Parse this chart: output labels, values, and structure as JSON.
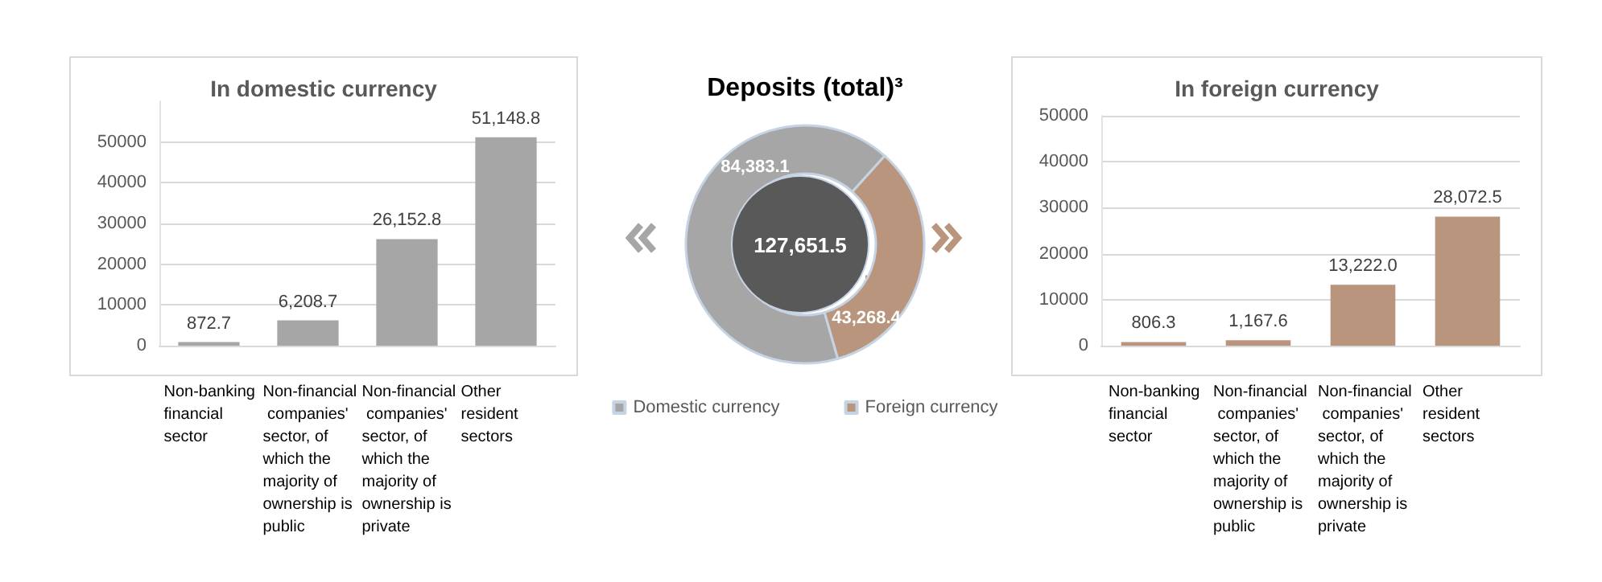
{
  "chart_data": [
    {
      "type": "bar",
      "title": "In domestic currency",
      "categories": [
        "Non-banking financial sector",
        "Non-financial companies' sector, of which the majority of ownership is public",
        "Non-financial companies' sector, of which the majority of ownership is private",
        "Other resident sectors"
      ],
      "values": [
        872.7,
        6208.7,
        26152.8,
        51148.8
      ],
      "value_labels": [
        "872.7",
        "6,208.7",
        "26,152.8",
        "51,148.8"
      ],
      "color": "#a6a6a6",
      "ylim": [
        0,
        60000
      ],
      "yticks": [
        0,
        10000,
        20000,
        30000,
        40000,
        50000
      ],
      "grid": "y"
    },
    {
      "type": "donut",
      "title": "Deposits (total)³",
      "categories": [
        "Domestic currency",
        "Foreign currency"
      ],
      "values": [
        84383.1,
        43268.4
      ],
      "value_labels": [
        "84,383.1",
        "43,268.4"
      ],
      "colors": [
        "#a6a6a6",
        "#b9957d"
      ],
      "legend": "bottom",
      "annotations": [
        "127,651.5"
      ]
    },
    {
      "type": "bar",
      "title": "In foreign currency",
      "categories": [
        "Non-banking financial sector",
        "Non-financial companies' sector, of which the majority of ownership is public",
        "Non-financial companies' sector, of which the majority of ownership is private",
        "Other resident sectors"
      ],
      "values": [
        806.3,
        1167.6,
        13222.0,
        28072.5
      ],
      "value_labels": [
        "806.3",
        "1,167.6",
        "13,222.0",
        "28,072.5"
      ],
      "color": "#b9957d",
      "ylim": [
        0,
        50000
      ],
      "yticks": [
        0,
        10000,
        20000,
        30000,
        40000,
        50000
      ],
      "grid": "y"
    }
  ]
}
